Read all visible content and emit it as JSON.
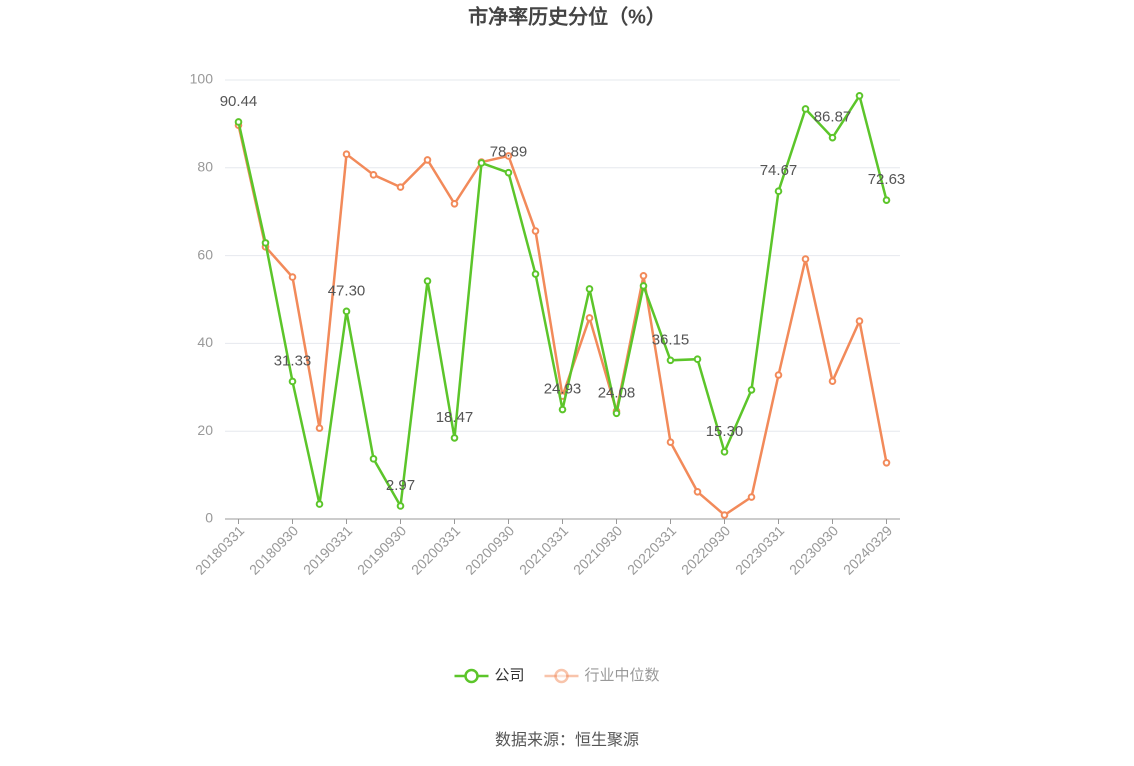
{
  "chart_data": {
    "type": "line",
    "title": "市净率历史分位（%）",
    "categories": [
      "20180331",
      null,
      "20180930",
      null,
      "20190331",
      null,
      "20190930",
      null,
      "20200331",
      null,
      "20200930",
      null,
      "20210331",
      null,
      "20210930",
      null,
      "20220331",
      null,
      "20220930",
      null,
      "20230331",
      null,
      "20230930",
      null,
      "20240329"
    ],
    "series": [
      {
        "name": "公司",
        "color": "#5cc52a",
        "values": [
          90.44,
          62.9,
          31.33,
          3.4,
          47.3,
          13.7,
          2.97,
          54.2,
          18.47,
          81.1,
          78.89,
          55.8,
          24.93,
          52.4,
          24.08,
          53.1,
          36.15,
          36.4,
          15.3,
          29.4,
          74.67,
          93.4,
          86.87,
          96.4,
          72.63
        ],
        "value_labels": [
          "90.44",
          null,
          "31.33",
          null,
          "47.30",
          null,
          "2.97",
          null,
          "18.47",
          null,
          "78.89",
          null,
          "24.93",
          null,
          "24.08",
          null,
          "36.15",
          null,
          "15.30",
          null,
          "74.67",
          null,
          "86.87",
          null,
          "72.63"
        ]
      },
      {
        "name": "行业中位数",
        "color": "#f28a5a",
        "values": [
          89.7,
          62.0,
          55.1,
          20.7,
          83.1,
          78.4,
          75.6,
          81.8,
          71.8,
          81.3,
          82.7,
          65.6,
          28.0,
          45.8,
          24.6,
          55.4,
          17.5,
          6.2,
          0.9,
          5.0,
          32.8,
          59.2,
          31.4,
          45.1,
          12.8
        ]
      }
    ],
    "ylim": [
      0,
      100
    ],
    "yticks": [
      0,
      20,
      40,
      60,
      80,
      100
    ],
    "grid": true,
    "legend": "bottom",
    "source": "数据来源：恒生聚源"
  }
}
